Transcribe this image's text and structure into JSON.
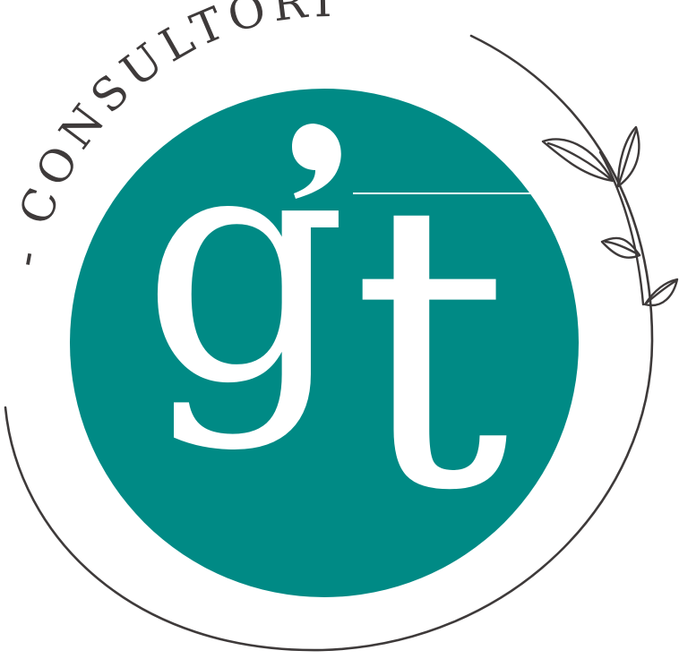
{
  "logo": {
    "arc_text": "- CONSULTORIOS -",
    "monogram": {
      "g": "g",
      "t": "t"
    },
    "colors": {
      "teal": "#008A85",
      "ink": "#3E3A3A",
      "background": "#FFFFFF",
      "monogram": "#FFFFFF"
    },
    "decoration": "olive-branch-icon"
  }
}
